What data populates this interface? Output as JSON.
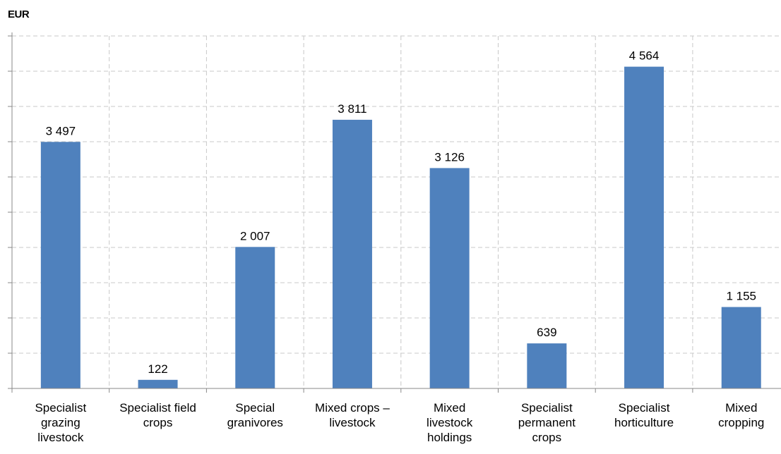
{
  "chart_data": {
    "type": "bar",
    "unit_label": "EUR",
    "categories": [
      [
        "Specialist",
        "grazing",
        "livestock"
      ],
      [
        "Specialist field",
        "crops"
      ],
      [
        "Special",
        "granivores"
      ],
      [
        "Mixed crops –",
        "livestock"
      ],
      [
        "Mixed",
        "livestock",
        "holdings"
      ],
      [
        "Specialist",
        "permanent",
        "crops"
      ],
      [
        "Specialist",
        "horticulture"
      ],
      [
        "Mixed",
        "cropping"
      ]
    ],
    "values": [
      3497,
      122,
      2007,
      3811,
      3126,
      639,
      4564,
      1155
    ],
    "value_labels": [
      "3 497",
      "122",
      "2 007",
      "3 811",
      "3 126",
      "639",
      "4 564",
      "1 155"
    ],
    "ylim": [
      0,
      5000
    ],
    "y_major_step": 500,
    "grid": true,
    "bar_color": "#4f81bd",
    "grid_color": "#c8c8c8",
    "axis_color": "#888888"
  }
}
